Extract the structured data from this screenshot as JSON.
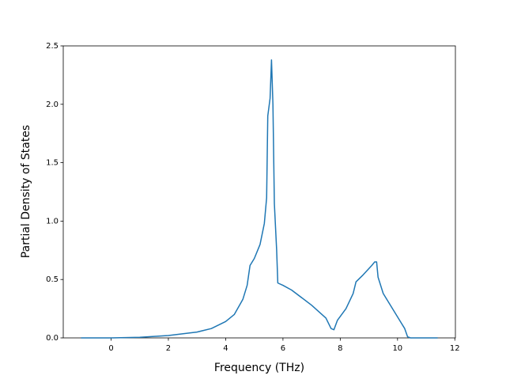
{
  "chart_data": {
    "type": "line",
    "xlabel": "Frequency (THz)",
    "ylabel": "Partial Density of States",
    "x": [
      -1.05,
      0,
      1,
      2,
      3,
      3.5,
      4,
      4.3,
      4.6,
      4.75,
      4.85,
      5.0,
      5.2,
      5.35,
      5.43,
      5.47,
      5.55,
      5.6,
      5.65,
      5.7,
      5.78,
      5.82,
      6.0,
      6.3,
      7.0,
      7.5,
      7.68,
      7.78,
      7.9,
      8.2,
      8.45,
      8.55,
      8.8,
      9.1,
      9.2,
      9.27,
      9.32,
      9.5,
      9.8,
      10.1,
      10.25,
      10.35,
      10.45,
      11.4
    ],
    "series": [
      {
        "color": "#1f77b4",
        "values": [
          0,
          0,
          0.005,
          0.02,
          0.05,
          0.08,
          0.14,
          0.2,
          0.33,
          0.45,
          0.62,
          0.68,
          0.8,
          0.98,
          1.2,
          1.9,
          2.05,
          2.38,
          2.0,
          1.15,
          0.75,
          0.47,
          0.45,
          0.41,
          0.28,
          0.17,
          0.08,
          0.07,
          0.15,
          0.25,
          0.38,
          0.48,
          0.54,
          0.62,
          0.65,
          0.65,
          0.52,
          0.38,
          0.26,
          0.14,
          0.08,
          0.01,
          0,
          0
        ]
      }
    ],
    "xlim": [
      -1.67,
      12.02
    ],
    "ylim": [
      0,
      2.5
    ],
    "xticks": [
      0,
      2,
      4,
      6,
      8,
      10,
      12
    ],
    "yticks": [
      {
        "value": 0,
        "label": "0.0"
      },
      0.5,
      {
        "value": 1,
        "label": "1.0"
      },
      1.5,
      {
        "value": 2,
        "label": "2.0"
      },
      2.5
    ]
  }
}
